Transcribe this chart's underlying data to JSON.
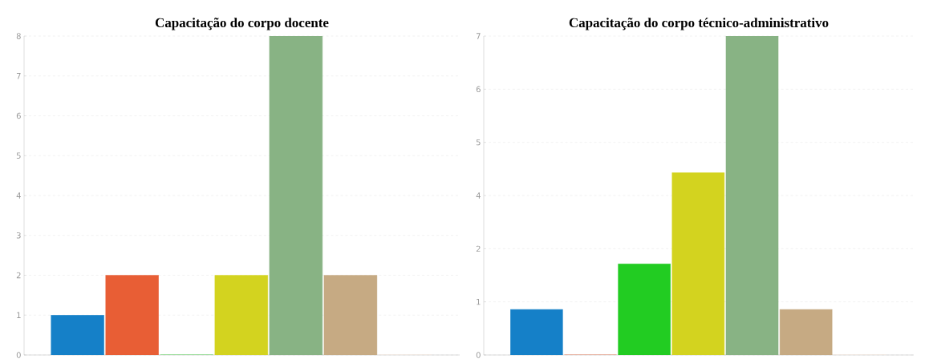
{
  "chart_data": [
    {
      "type": "bar",
      "title": "Capacitação do corpo docente",
      "categories": [
        null,
        null,
        null,
        null,
        null,
        null,
        null
      ],
      "values": [
        1,
        2,
        0,
        2,
        8,
        2,
        0
      ],
      "colors": [
        "#1580c8",
        "#e85e35",
        "#22cc22",
        "#d3d31f",
        "#88b384",
        "#c6aa83",
        "#fde8dc"
      ],
      "ylim": [
        0,
        8
      ],
      "yticks": [
        0,
        1,
        2,
        3,
        4,
        5,
        6,
        7,
        8
      ],
      "grid": "y"
    },
    {
      "type": "bar",
      "title": "Capacitação do corpo técnico-administrativo",
      "categories": [
        null,
        null,
        null,
        null,
        null,
        null,
        null
      ],
      "values": [
        1,
        0,
        2,
        4,
        7,
        1,
        0
      ],
      "colors": [
        "#1580c8",
        "#e85e35",
        "#22cc22",
        "#d3d31f",
        "#88b384",
        "#c6aa83",
        "#fde8dc"
      ],
      "ylim": [
        0,
        7
      ],
      "yticks": [
        0,
        {
          "value": 1.167,
          "label": "1"
        },
        {
          "value": 2.333,
          "label": "2"
        },
        {
          "value": 3.5,
          "label": "4"
        },
        {
          "value": 4.667,
          "label": "5"
        },
        {
          "value": 5.833,
          "label": "6"
        },
        7
      ],
      "grid": "y"
    }
  ]
}
